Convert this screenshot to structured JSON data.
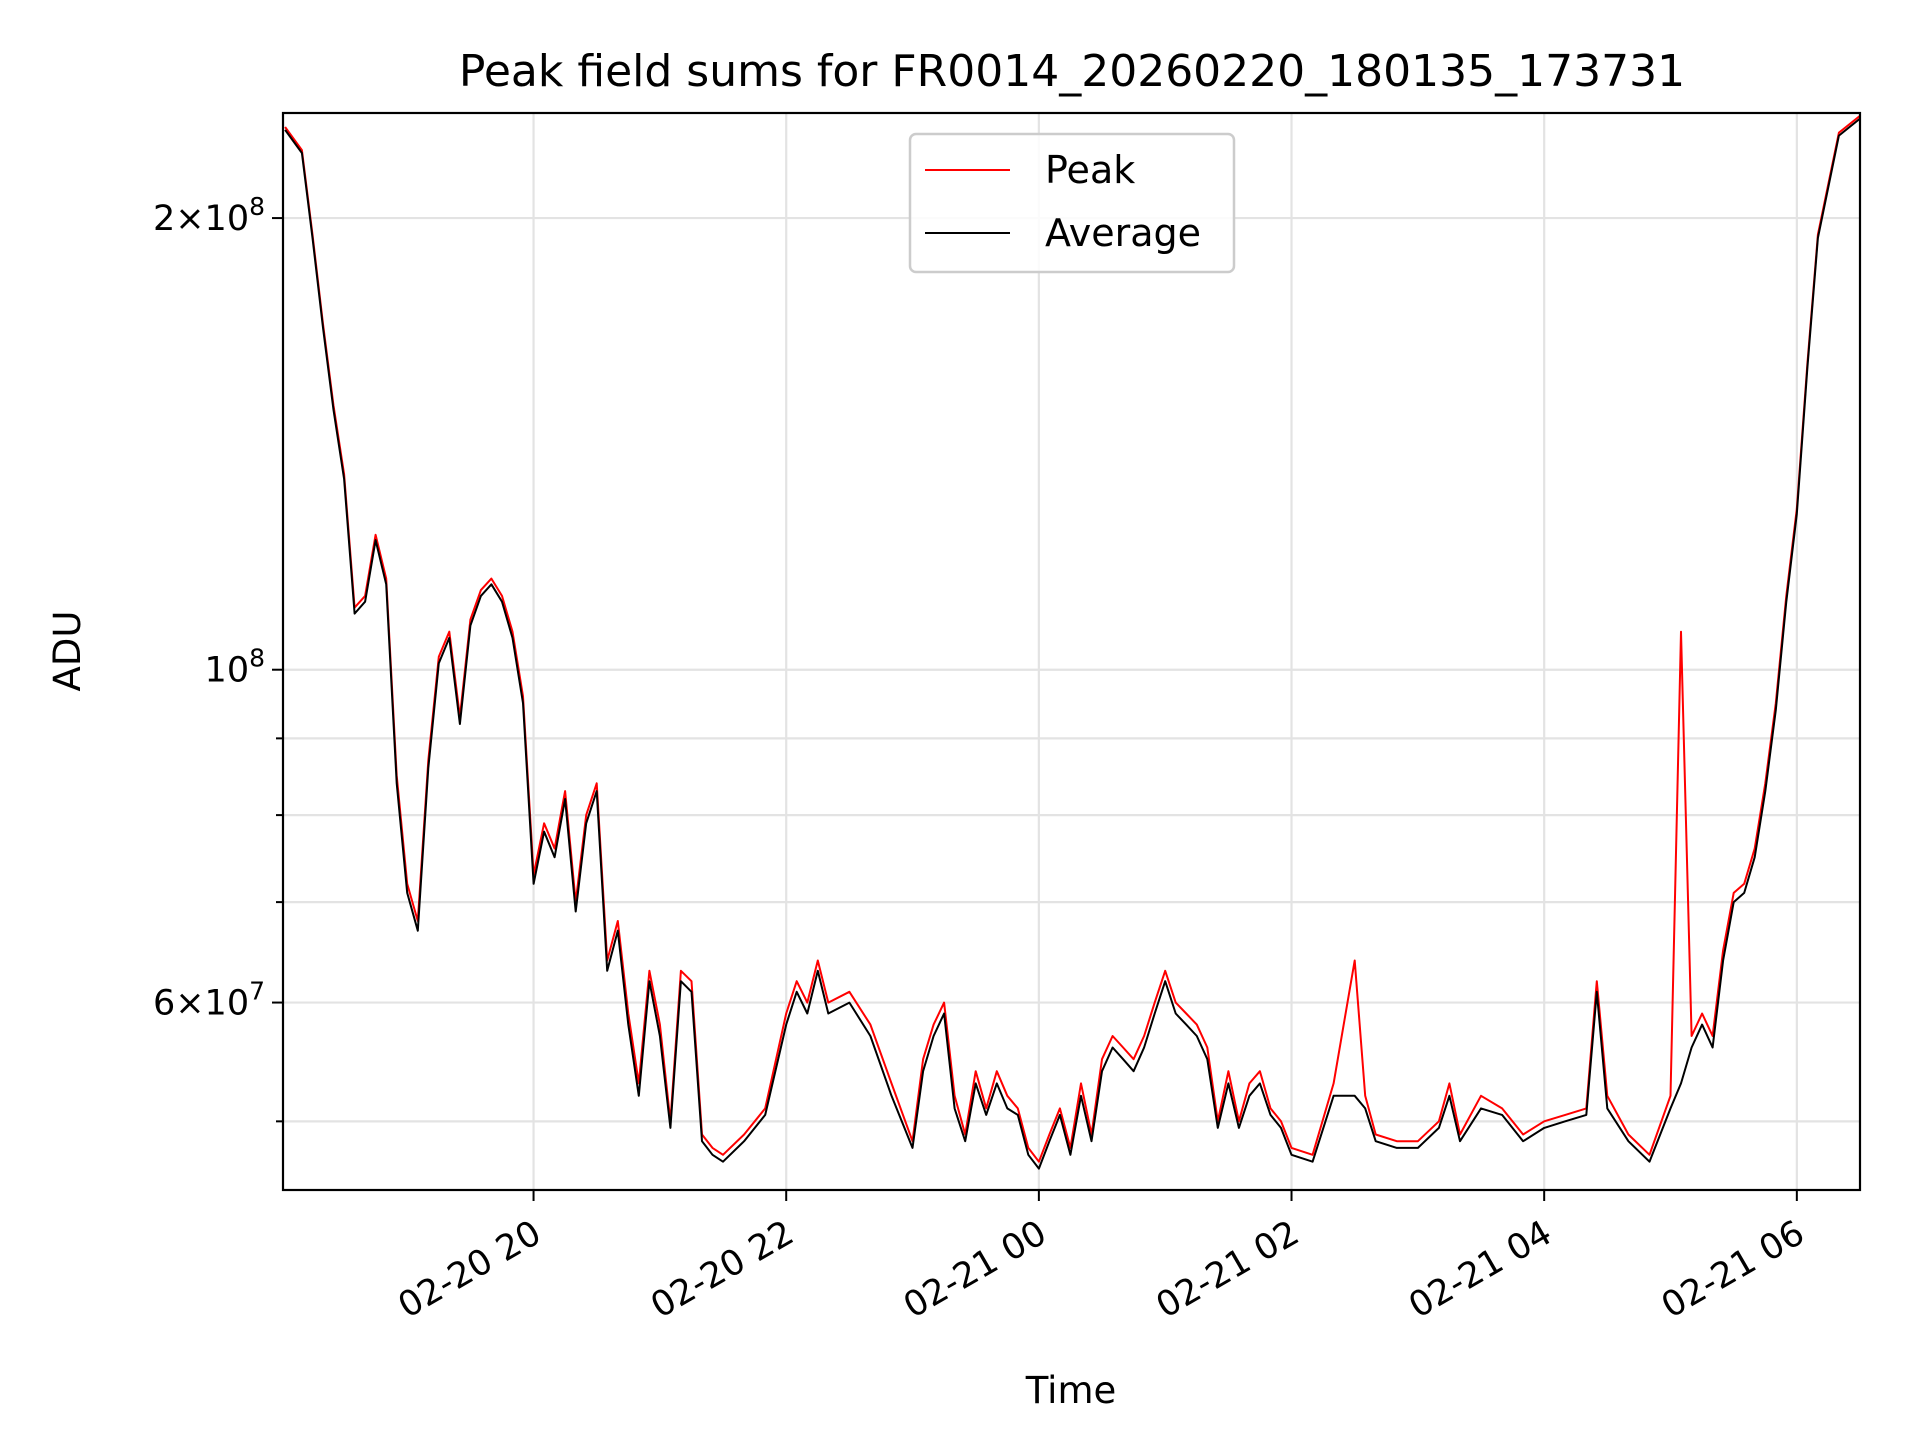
{
  "chart_data": {
    "type": "line",
    "title": "Peak field sums for FR0014_20260220_180135_173731",
    "xlabel": "Time",
    "ylabel": "ADU",
    "x_range": [
      "2026-02-20 18:01",
      "2026-02-21 06:30"
    ],
    "yscale": "log",
    "ylim": [
      45000000,
      235000000
    ],
    "grid": true,
    "legend_position": "upper center",
    "x_ticks": [
      {
        "label": "02-20 20",
        "value": "2026-02-20 20:00"
      },
      {
        "label": "02-20 22",
        "value": "2026-02-20 22:00"
      },
      {
        "label": "02-21 00",
        "value": "2026-02-21 00:00"
      },
      {
        "label": "02-21 02",
        "value": "2026-02-21 02:00"
      },
      {
        "label": "02-21 04",
        "value": "2026-02-21 04:00"
      },
      {
        "label": "02-21 06",
        "value": "2026-02-21 06:00"
      }
    ],
    "y_major_ticks": [
      {
        "value": 60000000,
        "mantissa": "6",
        "base": "10",
        "exp": "7"
      },
      {
        "value": 100000000,
        "mantissa": "",
        "base": "10",
        "exp": "8"
      },
      {
        "value": 200000000,
        "mantissa": "2",
        "base": "10",
        "exp": "8"
      }
    ],
    "y_minor_gridlines": [
      50000000,
      70000000,
      80000000,
      90000000
    ],
    "x": [
      "2026-02-20 18:02",
      "2026-02-20 18:10",
      "2026-02-20 18:15",
      "2026-02-20 18:20",
      "2026-02-20 18:25",
      "2026-02-20 18:30",
      "2026-02-20 18:35",
      "2026-02-20 18:40",
      "2026-02-20 18:45",
      "2026-02-20 18:50",
      "2026-02-20 18:55",
      "2026-02-20 19:00",
      "2026-02-20 19:05",
      "2026-02-20 19:10",
      "2026-02-20 19:15",
      "2026-02-20 19:20",
      "2026-02-20 19:25",
      "2026-02-20 19:30",
      "2026-02-20 19:35",
      "2026-02-20 19:40",
      "2026-02-20 19:45",
      "2026-02-20 19:50",
      "2026-02-20 19:55",
      "2026-02-20 20:00",
      "2026-02-20 20:05",
      "2026-02-20 20:10",
      "2026-02-20 20:15",
      "2026-02-20 20:20",
      "2026-02-20 20:25",
      "2026-02-20 20:30",
      "2026-02-20 20:35",
      "2026-02-20 20:40",
      "2026-02-20 20:45",
      "2026-02-20 20:50",
      "2026-02-20 20:55",
      "2026-02-20 21:00",
      "2026-02-20 21:05",
      "2026-02-20 21:10",
      "2026-02-20 21:15",
      "2026-02-20 21:20",
      "2026-02-20 21:25",
      "2026-02-20 21:30",
      "2026-02-20 21:40",
      "2026-02-20 21:50",
      "2026-02-20 22:00",
      "2026-02-20 22:05",
      "2026-02-20 22:10",
      "2026-02-20 22:15",
      "2026-02-20 22:20",
      "2026-02-20 22:30",
      "2026-02-20 22:40",
      "2026-02-20 22:50",
      "2026-02-20 23:00",
      "2026-02-20 23:05",
      "2026-02-20 23:10",
      "2026-02-20 23:15",
      "2026-02-20 23:20",
      "2026-02-20 23:25",
      "2026-02-20 23:30",
      "2026-02-20 23:35",
      "2026-02-20 23:40",
      "2026-02-20 23:45",
      "2026-02-20 23:50",
      "2026-02-20 23:55",
      "2026-02-21 00:00",
      "2026-02-21 00:05",
      "2026-02-21 00:10",
      "2026-02-21 00:15",
      "2026-02-21 00:20",
      "2026-02-21 00:25",
      "2026-02-21 00:30",
      "2026-02-21 00:35",
      "2026-02-21 00:40",
      "2026-02-21 00:45",
      "2026-02-21 00:50",
      "2026-02-21 00:55",
      "2026-02-21 01:00",
      "2026-02-21 01:05",
      "2026-02-21 01:10",
      "2026-02-21 01:15",
      "2026-02-21 01:20",
      "2026-02-21 01:25",
      "2026-02-21 01:30",
      "2026-02-21 01:35",
      "2026-02-21 01:40",
      "2026-02-21 01:45",
      "2026-02-21 01:50",
      "2026-02-21 01:55",
      "2026-02-21 02:00",
      "2026-02-21 02:10",
      "2026-02-21 02:20",
      "2026-02-21 02:30",
      "2026-02-21 02:35",
      "2026-02-21 02:40",
      "2026-02-21 02:50",
      "2026-02-21 03:00",
      "2026-02-21 03:10",
      "2026-02-21 03:15",
      "2026-02-21 03:20",
      "2026-02-21 03:30",
      "2026-02-21 03:40",
      "2026-02-21 03:50",
      "2026-02-21 04:00",
      "2026-02-21 04:10",
      "2026-02-21 04:20",
      "2026-02-21 04:25",
      "2026-02-21 04:30",
      "2026-02-21 04:40",
      "2026-02-21 04:50",
      "2026-02-21 05:00",
      "2026-02-21 05:05",
      "2026-02-21 05:10",
      "2026-02-21 05:15",
      "2026-02-21 05:20",
      "2026-02-21 05:25",
      "2026-02-21 05:30",
      "2026-02-21 05:35",
      "2026-02-21 05:40",
      "2026-02-21 05:45",
      "2026-02-21 05:50",
      "2026-02-21 05:55",
      "2026-02-21 06:00",
      "2026-02-21 06:05",
      "2026-02-21 06:10",
      "2026-02-21 06:20",
      "2026-02-21 06:30"
    ],
    "series": [
      {
        "name": "Peak",
        "color": "#ff0000",
        "values": [
          230000000,
          222000000,
          195000000,
          170000000,
          150000000,
          135000000,
          110000000,
          112000000,
          123000000,
          115000000,
          85000000,
          72000000,
          68000000,
          87000000,
          102000000,
          106000000,
          93000000,
          108000000,
          113000000,
          115000000,
          112000000,
          106000000,
          96000000,
          73000000,
          79000000,
          76000000,
          83000000,
          70000000,
          80000000,
          84000000,
          64000000,
          68000000,
          59000000,
          53000000,
          63000000,
          58000000,
          50000000,
          63000000,
          62000000,
          49000000,
          48000000,
          47500000,
          49000000,
          51000000,
          59000000,
          62000000,
          60000000,
          64000000,
          60000000,
          61000000,
          58000000,
          53000000,
          48500000,
          55000000,
          58000000,
          60000000,
          52000000,
          49000000,
          54000000,
          51000000,
          54000000,
          52000000,
          51000000,
          48000000,
          47000000,
          49000000,
          51000000,
          48000000,
          53000000,
          49000000,
          55000000,
          57000000,
          56000000,
          55000000,
          57000000,
          60000000,
          63000000,
          60000000,
          59000000,
          58000000,
          56000000,
          50000000,
          54000000,
          50000000,
          53000000,
          54000000,
          51000000,
          50000000,
          48000000,
          47500000,
          53000000,
          64000000,
          52000000,
          49000000,
          48500000,
          48500000,
          50000000,
          53000000,
          49000000,
          52000000,
          51000000,
          49000000,
          50000000,
          50500000,
          51000000,
          62000000,
          52000000,
          49000000,
          47500000,
          52000000,
          106000000,
          57000000,
          59000000,
          57000000,
          65000000,
          71000000,
          72000000,
          76000000,
          84000000,
          95000000,
          112000000,
          128000000,
          160000000,
          195000000,
          228000000,
          234000000
        ]
      },
      {
        "name": "Average",
        "color": "#000000",
        "values": [
          229000000,
          221000000,
          194000000,
          169000000,
          149000000,
          134000000,
          109000000,
          111000000,
          122000000,
          114000000,
          84000000,
          71000000,
          67000000,
          86000000,
          101000000,
          105000000,
          92000000,
          107000000,
          112000000,
          114000000,
          111000000,
          105000000,
          95000000,
          72000000,
          78000000,
          75000000,
          82000000,
          69000000,
          79000000,
          83000000,
          63000000,
          67000000,
          58000000,
          52000000,
          62000000,
          57000000,
          49500000,
          62000000,
          61000000,
          48500000,
          47500000,
          47000000,
          48500000,
          50500000,
          58000000,
          61000000,
          59000000,
          63000000,
          59000000,
          60000000,
          57000000,
          52000000,
          48000000,
          54000000,
          57000000,
          59000000,
          51000000,
          48500000,
          53000000,
          50500000,
          53000000,
          51000000,
          50500000,
          47500000,
          46500000,
          48500000,
          50500000,
          47500000,
          52000000,
          48500000,
          54000000,
          56000000,
          55000000,
          54000000,
          56000000,
          59000000,
          62000000,
          59000000,
          58000000,
          57000000,
          55000000,
          49500000,
          53000000,
          49500000,
          52000000,
          53000000,
          50500000,
          49500000,
          47500000,
          47000000,
          52000000,
          52000000,
          51000000,
          48500000,
          48000000,
          48000000,
          49500000,
          52000000,
          48500000,
          51000000,
          50500000,
          48500000,
          49500000,
          50000000,
          50500000,
          61000000,
          51000000,
          48500000,
          47000000,
          51000000,
          53000000,
          56000000,
          58000000,
          56000000,
          64000000,
          70000000,
          71000000,
          75000000,
          83000000,
          94000000,
          111000000,
          127000000,
          159000000,
          194000000,
          227000000,
          233000000
        ]
      }
    ]
  }
}
